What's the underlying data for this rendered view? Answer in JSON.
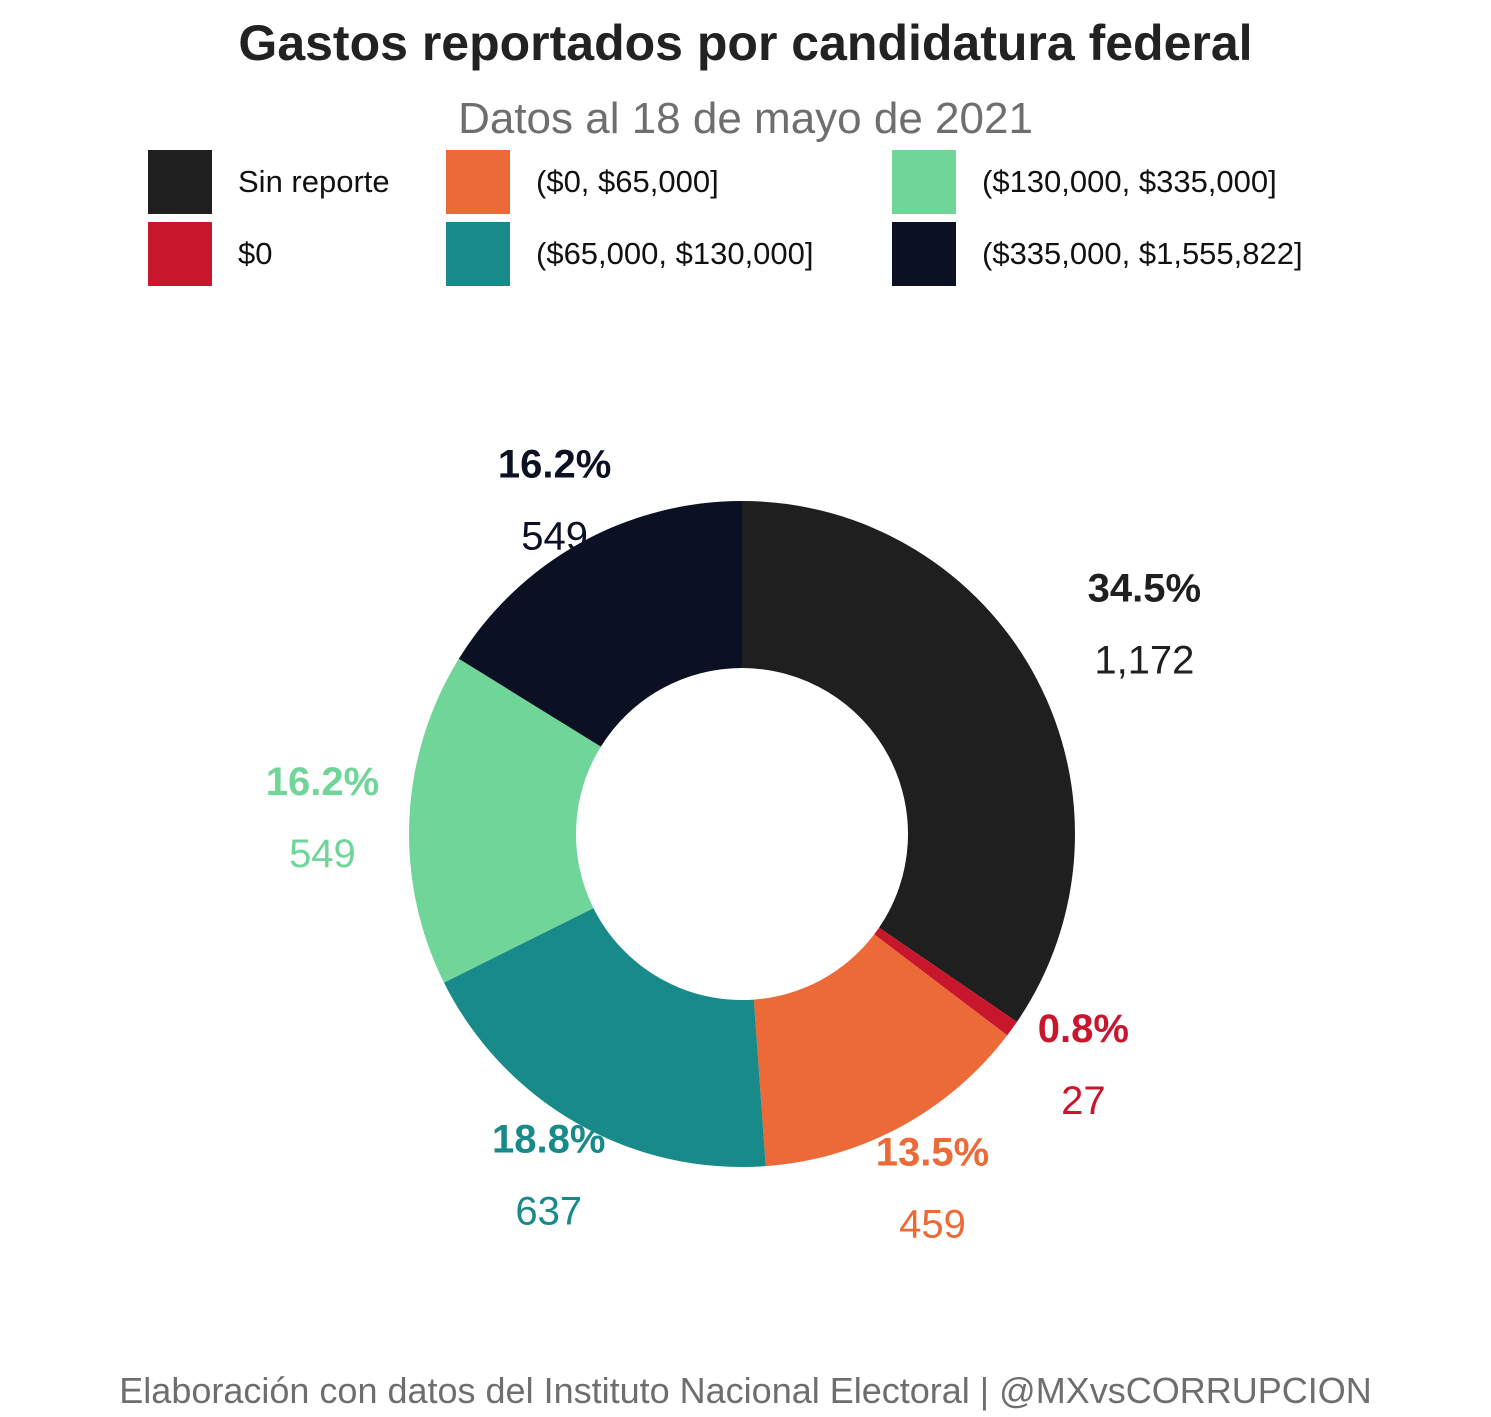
{
  "chart_data": {
    "type": "pie",
    "donut": true,
    "title": "Gastos reportados por candidatura federal",
    "subtitle": "Datos al 18 de mayo de 2021",
    "legend_position": "top",
    "categories": [
      "Sin reporte",
      "$0",
      "($0, $65,000]",
      "($65,000, $130,000]",
      "($130,000, $335,000]",
      "($335,000, $1,555,822]"
    ],
    "values": [
      1172,
      27,
      459,
      637,
      549,
      549
    ],
    "percent_labels": [
      "34.5%",
      "0.8%",
      "13.5%",
      "18.8%",
      "16.2%",
      "16.2%"
    ],
    "count_labels": [
      "1,172",
      "27",
      "459",
      "637",
      "549",
      "549"
    ],
    "colors": [
      "#1f1f1f",
      "#c8172d",
      "#eb6a37",
      "#178a89",
      "#70d598",
      "#0b1023"
    ]
  },
  "caption": "Elaboración con datos del Instituto Nacional Electoral | @MXvsCORRUPCION"
}
